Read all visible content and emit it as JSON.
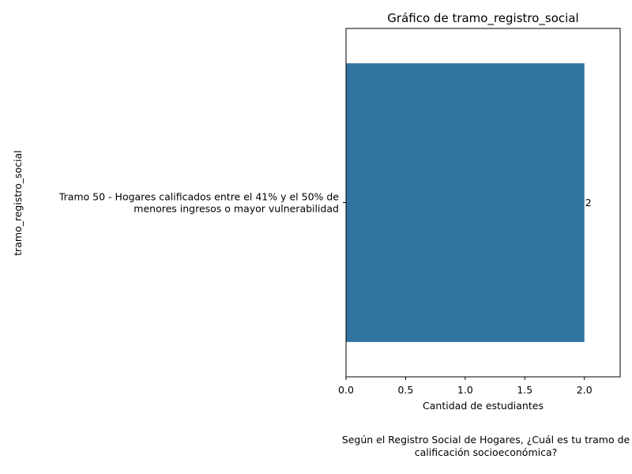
{
  "chart_data": {
    "type": "bar",
    "orientation": "horizontal",
    "title": "Gráfico de tramo_registro_social",
    "xlabel": "Cantidad de estudiantes",
    "ylabel": "tramo_registro_social",
    "categories": [
      [
        "Tramo 50 - Hogares calificados entre el 41% y el 50% de",
        "menores ingresos o mayor vulnerabilidad"
      ]
    ],
    "values": [
      2
    ],
    "data_labels": [
      "2"
    ],
    "xlim": [
      0,
      2.3
    ],
    "xticks": [
      0.0,
      0.5,
      1.0,
      1.5,
      2.0
    ],
    "xtick_labels": [
      "0.0",
      "0.5",
      "1.0",
      "1.5",
      "2.0"
    ],
    "bar_color": "#3274a1",
    "grid": false,
    "legend": "none"
  },
  "caption": {
    "lines": [
      "Según el Registro Social de Hogares, ¿Cuál es tu tramo de",
      "calificación socioeconómica?"
    ]
  }
}
